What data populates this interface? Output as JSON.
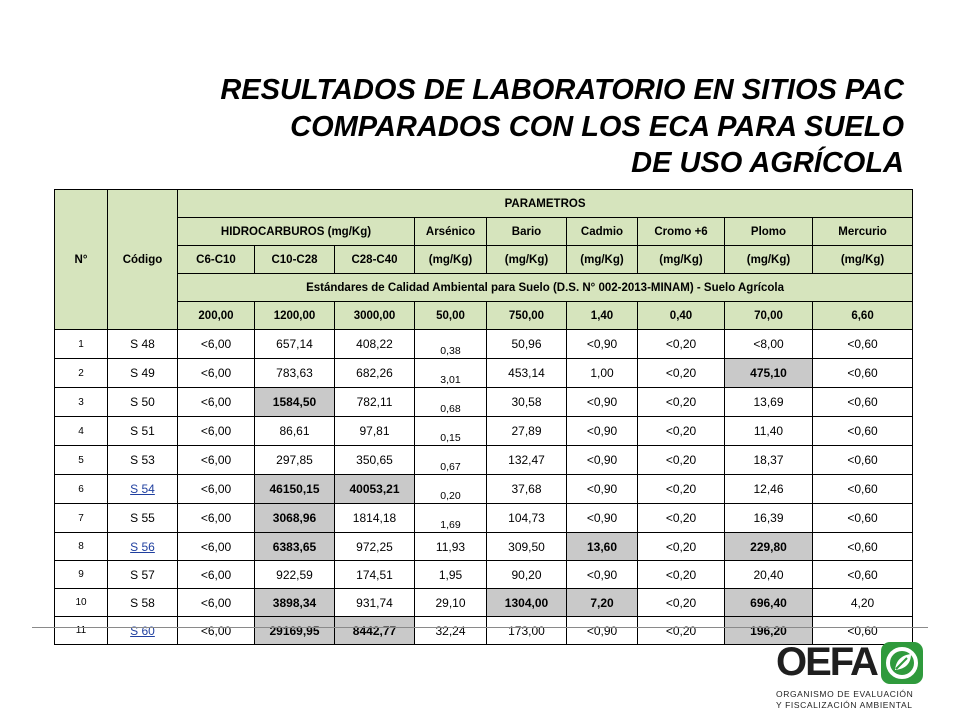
{
  "title": {
    "line1": "RESULTADOS DE LABORATORIO EN SITIOS PAC",
    "line2": "COMPARADOS CON LOS ECA PARA SUELO",
    "line3": "DE USO AGRÍCOLA"
  },
  "table": {
    "col_no": "N°",
    "col_code": "Código",
    "parametros": "PARAMETROS",
    "hidrocarburos": "HIDROCARBUROS (mg/Kg)",
    "params": [
      "Arsénico",
      "Bario",
      "Cadmio",
      "Cromo +6",
      "Plomo",
      "Mercurio"
    ],
    "sub": [
      "C6-C10",
      "C10-C28",
      "C28-C40",
      "(mg/Kg)",
      "(mg/Kg)",
      "(mg/Kg)",
      "(mg/Kg)",
      "(mg/Kg)",
      "(mg/Kg)"
    ],
    "standard_label": "Estándares de Calidad Ambiental para Suelo (D.S. N° 002-2013-MINAM) - Suelo Agrícola",
    "standards": [
      "200,00",
      "1200,00",
      "3000,00",
      "50,00",
      "750,00",
      "1,40",
      "0,40",
      "70,00",
      "6,60"
    ],
    "rows": [
      {
        "n": "1",
        "code": "S 48",
        "link": false,
        "v": [
          "<6,00",
          "657,14",
          "408,22",
          "0,38",
          "50,96",
          "<0,90",
          "<0,20",
          "<8,00",
          "<0,60"
        ]
      },
      {
        "n": "2",
        "code": "S 49",
        "link": false,
        "v": [
          "<6,00",
          "783,63",
          "682,26",
          "3,01",
          "453,14",
          "1,00",
          "<0,20",
          "475,10",
          "<0,60"
        ]
      },
      {
        "n": "3",
        "code": "S 50",
        "link": false,
        "v": [
          "<6,00",
          "1584,50",
          "782,11",
          "0,68",
          "30,58",
          "<0,90",
          "<0,20",
          "13,69",
          "<0,60"
        ]
      },
      {
        "n": "4",
        "code": "S 51",
        "link": false,
        "v": [
          "<6,00",
          "86,61",
          "97,81",
          "0,15",
          "27,89",
          "<0,90",
          "<0,20",
          "11,40",
          "<0,60"
        ]
      },
      {
        "n": "5",
        "code": "S 53",
        "link": false,
        "v": [
          "<6,00",
          "297,85",
          "350,65",
          "0,67",
          "132,47",
          "<0,90",
          "<0,20",
          "18,37",
          "<0,60"
        ]
      },
      {
        "n": "6",
        "code": "S 54",
        "link": true,
        "v": [
          "<6,00",
          "46150,15",
          "40053,21",
          "0,20",
          "37,68",
          "<0,90",
          "<0,20",
          "12,46",
          "<0,60"
        ]
      },
      {
        "n": "7",
        "code": "S 55",
        "link": false,
        "v": [
          "<6,00",
          "3068,96",
          "1814,18",
          "1,69",
          "104,73",
          "<0,90",
          "<0,20",
          "16,39",
          "<0,60"
        ]
      },
      {
        "n": "8",
        "code": "S 56",
        "link": true,
        "v": [
          "<6,00",
          "6383,65",
          "972,25",
          "11,93",
          "309,50",
          "13,60",
          "<0,20",
          "229,80",
          "<0,60"
        ]
      },
      {
        "n": "9",
        "code": "S 57",
        "link": false,
        "v": [
          "<6,00",
          "922,59",
          "174,51",
          "1,95",
          "90,20",
          "<0,90",
          "<0,20",
          "20,40",
          "<0,60"
        ]
      },
      {
        "n": "10",
        "code": "S 58",
        "link": false,
        "v": [
          "<6,00",
          "3898,34",
          "931,74",
          "29,10",
          "1304,00",
          "7,20",
          "<0,20",
          "696,40",
          "4,20"
        ]
      },
      {
        "n": "11",
        "code": "S 60",
        "link": true,
        "v": [
          "<6,00",
          "29169,95",
          "8442,77",
          "32,24",
          "173,00",
          "<0,90",
          "<0,20",
          "196,20",
          "<0,60"
        ]
      }
    ]
  },
  "logo": {
    "word": "OEFA",
    "sub1": "ORGANISMO DE EVALUACIÓN",
    "sub2": "Y FISCALIZACIÓN AMBIENTAL"
  },
  "colors": {
    "header_fill": "#d6e4bd",
    "exceed_fill": "#c9c9c9",
    "link": "#1f3f9f"
  }
}
